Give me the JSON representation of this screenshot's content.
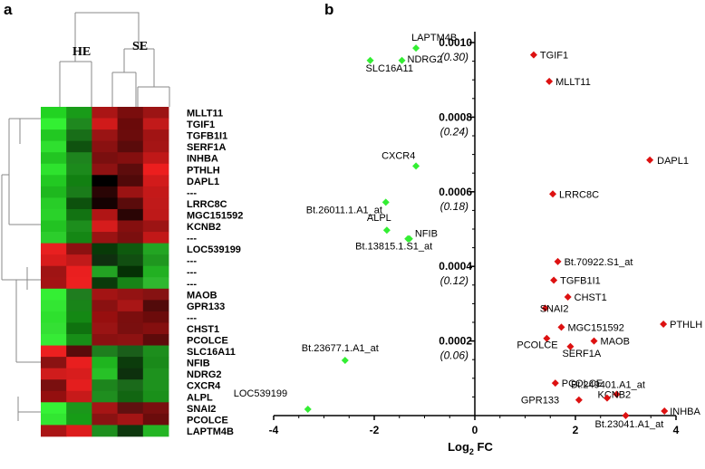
{
  "panels": {
    "a": "a",
    "b": "b"
  },
  "heatmap": {
    "col_groups": [
      "HE",
      "SE"
    ],
    "genes": [
      "MLLT11",
      "TGIF1",
      "TGFB1I1",
      "SERF1A",
      "INHBA",
      "PTHLH",
      "DAPL1",
      "---",
      "LRRC8C",
      "MGC151592",
      "KCNB2",
      "---",
      "LOC539199",
      "---",
      "---",
      "---",
      "MAOB",
      "GPR133",
      "---",
      "CHST1",
      "PCOLCE",
      "SLC16A11",
      "NFIB",
      "NDRG2",
      "CXCR4",
      "ALPL",
      "SNAI2",
      "PCOLCE",
      "LAPTM4B"
    ],
    "cells": [
      [
        "#22d322",
        "#199b19",
        "#aa1515",
        "#7a0d0d",
        "#9c1414"
      ],
      [
        "#33f033",
        "#1f881f",
        "#d01a1a",
        "#6a0a0a",
        "#c21a1a"
      ],
      [
        "#22c822",
        "#186e18",
        "#9a1414",
        "#6b0c0c",
        "#a11414"
      ],
      [
        "#2fdf2f",
        "#0f520f",
        "#8a1111",
        "#5a0b0b",
        "#a51515"
      ],
      [
        "#22c522",
        "#1e841e",
        "#7a0f0f",
        "#840f0f",
        "#c01818"
      ],
      [
        "#2ee22e",
        "#1c8a1c",
        "#8e1212",
        "#5d0c0c",
        "#ec1e1e"
      ],
      [
        "#22c922",
        "#128012",
        "#000000",
        "#500909",
        "#d21b1b"
      ],
      [
        "#1eb81e",
        "#1a7c1a",
        "#2a0505",
        "#9b1313",
        "#c41919"
      ],
      [
        "#28cd28",
        "#0d510d",
        "#140202",
        "#5a0b0b",
        "#c01a1a"
      ],
      [
        "#2ad22a",
        "#127312",
        "#b01515",
        "#2a0505",
        "#be1919"
      ],
      [
        "#22c322",
        "#1d8e1d",
        "#d61c1c",
        "#850f0f",
        "#9d1414"
      ],
      [
        "#2ccd2c",
        "#158715",
        "#9a1313",
        "#7b0f0f",
        "#c21818"
      ],
      [
        "#e82020",
        "#8c1111",
        "#083a08",
        "#0e5a0e",
        "#23a523"
      ],
      [
        "#d81c1c",
        "#c11a1a",
        "#0f2f0f",
        "#114e11",
        "#1f971f"
      ],
      [
        "#9f1414",
        "#ea1f1f",
        "#23a323",
        "#053005",
        "#22b022"
      ],
      [
        "#a31414",
        "#ec2020",
        "#0a3a0a",
        "#178417",
        "#2fb82f"
      ],
      [
        "#34ef34",
        "#1f7d1f",
        "#a31414",
        "#941313",
        "#861212"
      ],
      [
        "#33e633",
        "#198419",
        "#8a1111",
        "#a91616",
        "#520a0a"
      ],
      [
        "#2ee02e",
        "#148814",
        "#970f0f",
        "#7b0e0e",
        "#6c0b0b"
      ],
      [
        "#34e034",
        "#0f720f",
        "#9a1414",
        "#7a0f0f",
        "#850f0f"
      ],
      [
        "#36eb36",
        "#178e17",
        "#8a1111",
        "#8e1212",
        "#5e0b0b"
      ],
      [
        "#ec2020",
        "#5a0b0b",
        "#1e7e1e",
        "#1a5e1a",
        "#1d8e1d"
      ],
      [
        "#8a1212",
        "#e81f1f",
        "#1fb51f",
        "#0c3c0c",
        "#1a8a1a"
      ],
      [
        "#d01c1c",
        "#d81d1d",
        "#27c127",
        "#0d300d",
        "#1e921e"
      ],
      [
        "#7a0f0f",
        "#e41e1e",
        "#1d851d",
        "#1b6a1b",
        "#1e921e"
      ],
      [
        "#940f0f",
        "#c71a1a",
        "#1f8e1f",
        "#126612",
        "#1a901a"
      ],
      [
        "#36f236",
        "#1b971b",
        "#a61515",
        "#601010",
        "#7a0f0f"
      ],
      [
        "#32e632",
        "#179c17",
        "#8a1212",
        "#a31515",
        "#6b0c0c"
      ],
      [
        "#aa1515",
        "#dd1c1c",
        "#1e8f1e",
        "#0e380e",
        "#24b524"
      ]
    ]
  },
  "chart_data": {
    "type": "scatter",
    "xlabel": "Log2 FC",
    "xlabel_base": "Log",
    "xlabel_sub": "2",
    "xlabel_rest": " FC",
    "xlim": [
      -4,
      4
    ],
    "ylim": [
      0,
      0.001
    ],
    "xticks": [
      -4,
      -2,
      0,
      2,
      4
    ],
    "yticks": [
      {
        "value": 0.001,
        "label": "0.0010",
        "sub": "(0.30)"
      },
      {
        "value": 0.0008,
        "label": "0.0008",
        "sub": "(0.24)"
      },
      {
        "value": 0.0006,
        "label": "0.0006",
        "sub": "(0.18)"
      },
      {
        "value": 0.0004,
        "label": "0.0004",
        "sub": "(0.12)"
      },
      {
        "value": 0.0002,
        "label": "0.0002",
        "sub": "(0.06)"
      }
    ],
    "down_color": "#33ee33",
    "up_color": "#dd1111",
    "down_points": [
      {
        "label": "LAPTM4B",
        "x": -1.17,
        "y": 0.000985
      },
      {
        "label": "NDRG2",
        "x": -1.45,
        "y": 0.000952
      },
      {
        "label": "SLC16A11",
        "x": -2.08,
        "y": 0.000952
      },
      {
        "label": "CXCR4",
        "x": -1.17,
        "y": 0.000669
      },
      {
        "label": "Bt.26011.1.A1_at",
        "x": -1.77,
        "y": 0.000572
      },
      {
        "label": "ALPL",
        "x": -1.75,
        "y": 0.000497
      },
      {
        "label": "NFIB",
        "x": -1.3,
        "y": 0.000474
      },
      {
        "label": "Bt.13815.1.S1_at",
        "x": -1.33,
        "y": 0.000474
      },
      {
        "label": "Bt.23677.1.A1_at",
        "x": -2.58,
        "y": 0.000148
      },
      {
        "label": "LOC539199",
        "x": -3.32,
        "y": 1.7e-05
      }
    ],
    "up_points": [
      {
        "label": "TGIF1",
        "x": 1.17,
        "y": 0.000967
      },
      {
        "label": "MLLT11",
        "x": 1.48,
        "y": 0.000896
      },
      {
        "label": "DAPL1",
        "x": 3.48,
        "y": 0.000685
      },
      {
        "label": "LRRC8C",
        "x": 1.55,
        "y": 0.000594
      },
      {
        "label": "Bt.70922.S1_at",
        "x": 1.65,
        "y": 0.000413
      },
      {
        "label": "TGFB1I1",
        "x": 1.57,
        "y": 0.000363
      },
      {
        "label": "CHST1",
        "x": 1.85,
        "y": 0.000318
      },
      {
        "label": "SNAI2",
        "x": 1.4,
        "y": 0.000288
      },
      {
        "label": "MGC151592",
        "x": 1.72,
        "y": 0.000237
      },
      {
        "label": "PTHLH",
        "x": 3.75,
        "y": 0.000245
      },
      {
        "label": "MAOB",
        "x": 2.37,
        "y": 0.0002
      },
      {
        "label": "PCOLCE",
        "x": 1.43,
        "y": 0.000207
      },
      {
        "label": "SERF1A",
        "x": 1.9,
        "y": 0.000185
      },
      {
        "label": "PCOLCE",
        "x": 1.6,
        "y": 8.7e-05
      },
      {
        "label": "GPR133",
        "x": 2.07,
        "y": 4.2e-05
      },
      {
        "label": "KCNB2",
        "x": 2.82,
        "y": 5.7e-05
      },
      {
        "label": "Bt.249401.A1_at",
        "x": 2.63,
        "y": 4.7e-05
      },
      {
        "label": "INHBA",
        "x": 3.77,
        "y": 1.2e-05
      },
      {
        "label": "Bt.23041.A1_at",
        "x": 3.0,
        "y": 0.0
      }
    ]
  }
}
